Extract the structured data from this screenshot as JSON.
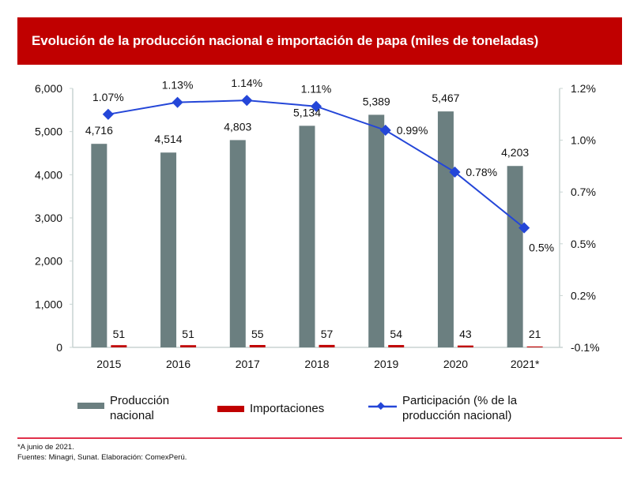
{
  "title": "Evolución de la producción nacional e importación de papa (miles de toneladas)",
  "colors": {
    "title_bg": "#c00000",
    "produccion": "#6b7f80",
    "importaciones": "#c00000",
    "participacion": "#2446d8",
    "axis": "#c8d4d2",
    "footer_line": "#e0304a"
  },
  "chart_data": {
    "type": "bar",
    "title": "Evolución de la producción nacional e importación de papa (miles de toneladas)",
    "categories": [
      "2015",
      "2016",
      "2017",
      "2018",
      "2019",
      "2020",
      "2021*"
    ],
    "series": [
      {
        "name": "Producción nacional",
        "type": "bar",
        "axis": "left",
        "values": [
          4716,
          4514,
          4803,
          5134,
          5389,
          5467,
          4203
        ],
        "labels": [
          "4,716",
          "4,514",
          "4,803",
          "5,134",
          "5,389",
          "5,467",
          "4,203"
        ]
      },
      {
        "name": "Importaciones",
        "type": "bar",
        "axis": "left",
        "values": [
          51,
          51,
          55,
          57,
          54,
          43,
          21
        ],
        "labels": [
          "51",
          "51",
          "55",
          "57",
          "54",
          "43",
          "21"
        ]
      },
      {
        "name": "Participación (% de la producción nacional)",
        "type": "line",
        "axis": "right",
        "values": [
          1.07,
          1.13,
          1.14,
          1.11,
          0.99,
          0.78,
          0.5
        ],
        "labels": [
          "1.07%",
          "1.13%",
          "1.14%",
          "1.11%",
          "0.99%",
          "0.78%",
          "0.5%"
        ]
      }
    ],
    "y_left": {
      "range": [
        0,
        6000
      ],
      "ticks": [
        0,
        1000,
        2000,
        3000,
        4000,
        5000,
        6000
      ],
      "tick_labels": [
        "0",
        "1,000",
        "2,000",
        "3,000",
        "4,000",
        "5,000",
        "6,000"
      ]
    },
    "y_right": {
      "range": [
        -0.1,
        1.2
      ],
      "tick_labels": [
        "-0.1%",
        "0.2%",
        "0.5%",
        "0.7%",
        "1.0%",
        "1.2%"
      ]
    },
    "xlabel": "",
    "grid": false,
    "legend_position": "bottom"
  },
  "legend": {
    "produccion_line1": "Producción",
    "produccion_line2": "nacional",
    "importaciones": "Importaciones",
    "participacion_line1": "Participación (% de la",
    "participacion_line2": "producción nacional)"
  },
  "footnotes": {
    "note": "*A junio de 2021.",
    "source": "Fuentes: Minagri, Sunat. Elaboración: ComexPerú."
  }
}
